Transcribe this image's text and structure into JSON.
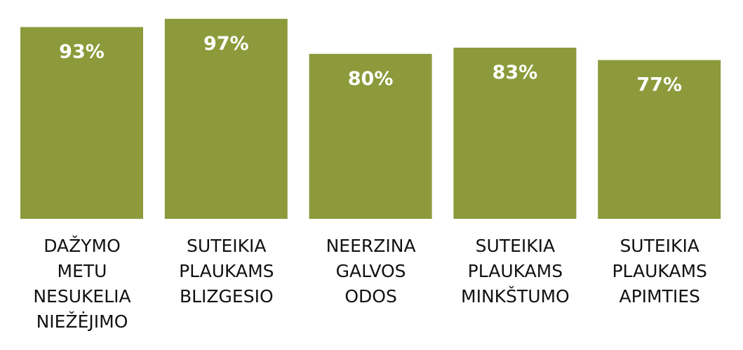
{
  "chart_data": {
    "type": "bar",
    "categories": [
      "DAŽYMO METU NESUKELIA NIEŽĖJIMO",
      "SUTEIKIA PLAUKAMS BLIZGESIO",
      "NEERZINA GALVOS ODOS",
      "SUTEIKIA PLAUKAMS MINKŠTUMO",
      "SUTEIKIA PLAUKAMS APIMTIES"
    ],
    "values": [
      93,
      97,
      80,
      83,
      77
    ],
    "value_labels": [
      "93%",
      "97%",
      "80%",
      "83%",
      "77%"
    ],
    "color": "#8c9a3b"
  }
}
